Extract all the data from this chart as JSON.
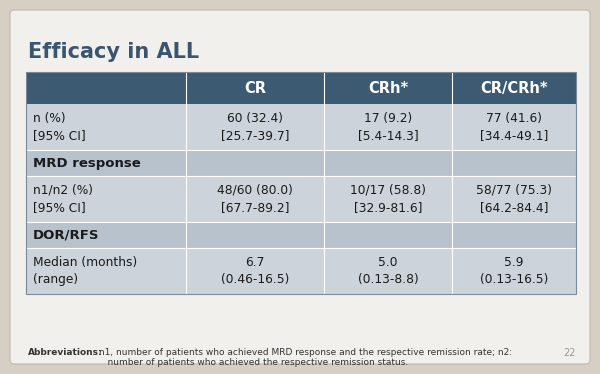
{
  "title": "Efficacy in ALL",
  "bg_outer": "#d6cfc4",
  "bg_card": "#f2f0ec",
  "header_bg": "#3d5a73",
  "header_text_color": "#ffffff",
  "col_headers": [
    "CR",
    "CRh*",
    "CR/CRh*"
  ],
  "data_row_bg": "#cdd3da",
  "section_row_bg": "#b8c2cc",
  "rows": [
    {
      "label": "n (%)\n[95% CI]",
      "values": [
        "60 (32.4)\n[25.7-39.7]",
        "17 (9.2)\n[5.4-14.3]",
        "77 (41.6)\n[34.4-49.1]"
      ],
      "is_section": false
    },
    {
      "label": "MRD response",
      "values": [
        "",
        "",
        ""
      ],
      "is_section": true
    },
    {
      "label": "n1/n2 (%)\n[95% CI]",
      "values": [
        "48/60 (80.0)\n[67.7-89.2]",
        "10/17 (58.8)\n[32.9-81.6]",
        "58/77 (75.3)\n[64.2-84.4]"
      ],
      "is_section": false
    },
    {
      "label": "DOR/RFS",
      "values": [
        "",
        "",
        ""
      ],
      "is_section": true
    },
    {
      "label": "Median (months)\n(range)",
      "values": [
        "6.7\n(0.46-16.5)",
        "5.0\n(0.13-8.8)",
        "5.9\n(0.13-16.5)"
      ],
      "is_section": false
    }
  ],
  "abbrev_bold": "Abbreviations:",
  "abbrev_rest": " n1, number of patients who achieved MRD response and the respective remission rate; n2:\n    number of patients who achieved the respective remission status.",
  "page_num": "22"
}
